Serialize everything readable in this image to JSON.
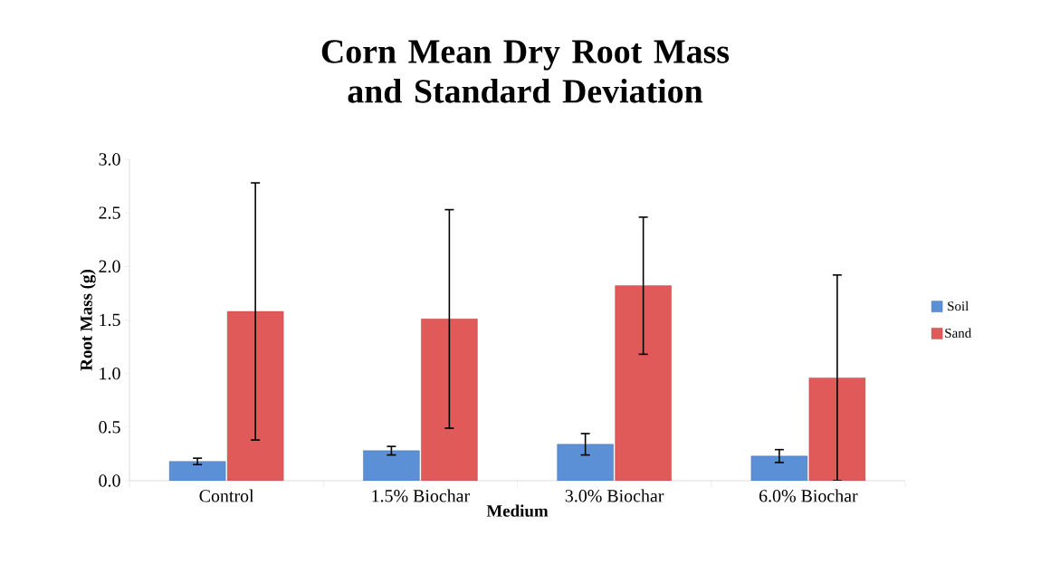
{
  "chart_data": {
    "type": "bar",
    "title": "Corn Mean Dry Root Mass and Standard Deviation",
    "xlabel": "Medium",
    "ylabel": "Root Mass (g)",
    "categories": [
      "Control",
      "1.5% Biochar",
      "3.0% Biochar",
      "6.0% Biochar"
    ],
    "series": [
      {
        "name": "Soil",
        "color": "#5b8fd6",
        "values": [
          0.18,
          0.28,
          0.34,
          0.23
        ],
        "errors": [
          0.03,
          0.04,
          0.1,
          0.06
        ]
      },
      {
        "name": "Sand",
        "color": "#e05a5a",
        "values": [
          1.58,
          1.51,
          1.82,
          0.96
        ],
        "errors": [
          1.2,
          1.02,
          0.64,
          0.96
        ]
      }
    ],
    "ylim": [
      0,
      3.0
    ],
    "yticks": [
      {
        "value": 0,
        "label": "0.0"
      },
      {
        "value": 0.5,
        "label": "0.5"
      },
      {
        "value": 1.0,
        "label": "1.0"
      },
      {
        "value": 1.5,
        "label": "1.5"
      },
      {
        "value": 2.0,
        "label": "2.0"
      },
      {
        "value": 2.5,
        "label": "2.5"
      },
      {
        "value": 3.0,
        "label": "3.0"
      }
    ],
    "grid": false,
    "legend": "right"
  }
}
